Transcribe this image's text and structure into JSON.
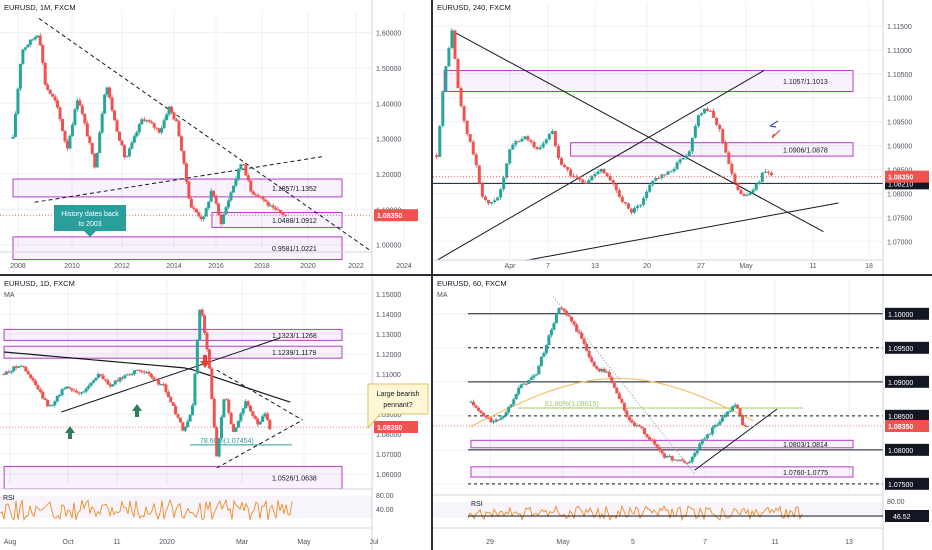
{
  "colors": {
    "bull": "#26a69a",
    "bear": "#ef5350",
    "zone_stroke": "#b43cc8",
    "zone_fill": "rgba(200,120,220,0.10)",
    "price_badge": "#ef5350",
    "rsi": "#f08a24",
    "ma": "#f5c26b",
    "teal": "#2a9d9d",
    "green": "#2e7d5b",
    "orange_arrow": "#e34234",
    "fib": "#9ccc65",
    "grid": "#eef0f4",
    "text": "#131722"
  },
  "chart_data": [
    {
      "id": "tl",
      "type": "candlestick",
      "title": "EURUSD, 1M, FXCM",
      "x_labels": [
        "2008",
        "2010",
        "2012",
        "2014",
        "2016",
        "2018",
        "2020",
        "2022",
        "2024"
      ],
      "y_ticks": [
        "1.60000",
        "1.50000",
        "1.40000",
        "1.30000",
        "1.20000",
        "1.10000",
        "1.00000"
      ],
      "ylim": [
        0.985,
        1.63
      ],
      "price": 1.0835,
      "price_label": "1.08350",
      "path": [
        [
          0,
          1.3
        ],
        [
          4,
          1.55
        ],
        [
          12,
          1.6
        ],
        [
          15,
          1.45
        ],
        [
          20,
          1.4
        ],
        [
          25,
          1.27
        ],
        [
          30,
          1.42
        ],
        [
          38,
          1.22
        ],
        [
          43,
          1.46
        ],
        [
          47,
          1.35
        ],
        [
          52,
          1.24
        ],
        [
          60,
          1.36
        ],
        [
          68,
          1.32
        ],
        [
          72,
          1.39
        ],
        [
          76,
          1.34
        ],
        [
          82,
          1.11
        ],
        [
          88,
          1.07
        ],
        [
          92,
          1.16
        ],
        [
          96,
          1.06
        ],
        [
          102,
          1.17
        ],
        [
          106,
          1.24
        ],
        [
          110,
          1.15
        ],
        [
          114,
          1.14
        ],
        [
          120,
          1.1
        ],
        [
          124,
          1.09
        ],
        [
          126,
          1.083
        ]
      ],
      "x_range": [
        -6,
        166
      ],
      "zones": [
        {
          "label": "1.1857/1.1352",
          "top": 1.1857,
          "bottom": 1.1352,
          "x_from": 0
        },
        {
          "label": "1.0488/1.0912",
          "top": 1.0912,
          "bottom": 1.0488,
          "x_from": 92
        },
        {
          "label": "0.9581/1.0221",
          "top": 1.0221,
          "bottom": 0.9581,
          "x_from": 0
        }
      ],
      "lines": [
        {
          "style": "dashed",
          "from": [
            12,
            1.64
          ],
          "to": [
            166,
            0.98
          ]
        },
        {
          "style": "dashed",
          "from": [
            10,
            1.12
          ],
          "to": [
            144,
            1.25
          ]
        }
      ],
      "callout": [
        "History dates back",
        "to 2003"
      ]
    },
    {
      "id": "tr",
      "type": "candlestick",
      "title": "EURUSD, 240, FXCM",
      "x_labels": [
        "Apr",
        "7",
        "13",
        "20",
        "27",
        "May",
        "11",
        "18"
      ],
      "y_ticks": [
        "1.11500",
        "1.11000",
        "1.10500",
        "1.10000",
        "1.09500",
        "1.09000",
        "1.08500",
        "1.08000",
        "1.07500",
        "1.07000"
      ],
      "ylim": [
        1.0665,
        1.1175
      ],
      "price": 1.0835,
      "price_label": "1.08350",
      "level_label": "1.08210",
      "level": 1.0821,
      "path": [
        [
          0,
          1.088
        ],
        [
          2,
          1.104
        ],
        [
          4,
          1.1145
        ],
        [
          6,
          1.1
        ],
        [
          8,
          1.093
        ],
        [
          10,
          1.088
        ],
        [
          12,
          1.08
        ],
        [
          14,
          1.0775
        ],
        [
          17,
          1.08
        ],
        [
          20,
          1.09
        ],
        [
          24,
          1.092
        ],
        [
          27,
          1.089
        ],
        [
          31,
          1.093
        ],
        [
          33,
          1.087
        ],
        [
          36,
          1.084
        ],
        [
          40,
          1.082
        ],
        [
          44,
          1.0855
        ],
        [
          48,
          1.081
        ],
        [
          52,
          1.076
        ],
        [
          55,
          1.0775
        ],
        [
          58,
          1.083
        ],
        [
          62,
          1.084
        ],
        [
          65,
          1.0865
        ],
        [
          68,
          1.089
        ],
        [
          70,
          1.096
        ],
        [
          72,
          1.098
        ],
        [
          74,
          1.0965
        ],
        [
          76,
          1.0935
        ],
        [
          78,
          1.088
        ],
        [
          80,
          1.082
        ],
        [
          82,
          1.08
        ],
        [
          84,
          1.0795
        ],
        [
          86,
          1.082
        ],
        [
          88,
          1.0845
        ],
        [
          90,
          1.0835
        ]
      ],
      "x_range": [
        -1,
        120
      ],
      "zones": [
        {
          "label": "1.1057/1.1013",
          "top": 1.1057,
          "bottom": 1.1013,
          "x_from": 2
        },
        {
          "label": "1.0906/1.0878",
          "top": 1.0906,
          "bottom": 1.0878,
          "x_from": 36
        }
      ],
      "lines": [
        {
          "style": "solid",
          "from": [
            4,
            1.114
          ],
          "to": [
            104,
            1.072
          ]
        },
        {
          "style": "solid",
          "from": [
            0,
            1.066
          ],
          "to": [
            88,
            1.1057
          ]
        },
        {
          "style": "solid",
          "from": [
            24,
            1.066
          ],
          "to": [
            108,
            1.078
          ]
        }
      ]
    },
    {
      "id": "bl",
      "type": "candlestick",
      "title": "EURUSD, 1D, FXCM",
      "subtitle": "MA",
      "x_labels": [
        "Aug",
        "Oct",
        "11",
        "2020",
        "Mar",
        "May",
        "Jul"
      ],
      "y_ticks": [
        "1.15000",
        "1.14000",
        "1.13000",
        "1.12000",
        "1.11000",
        "1.10000",
        "1.09000",
        "1.08000",
        "1.07000",
        "1.06000"
      ],
      "ylim": [
        1.055,
        1.152
      ],
      "price": 1.0835,
      "price_label": "1.08350",
      "path": [
        [
          0,
          1.11
        ],
        [
          8,
          1.115
        ],
        [
          15,
          1.105
        ],
        [
          22,
          1.093
        ],
        [
          30,
          1.104
        ],
        [
          38,
          1.1
        ],
        [
          46,
          1.11
        ],
        [
          52,
          1.104
        ],
        [
          60,
          1.11
        ],
        [
          68,
          1.112
        ],
        [
          72,
          1.108
        ],
        [
          78,
          1.104
        ],
        [
          82,
          1.095
        ],
        [
          88,
          1.081
        ],
        [
          92,
          1.092
        ],
        [
          96,
          1.146
        ],
        [
          100,
          1.118
        ],
        [
          104,
          1.068
        ],
        [
          108,
          1.102
        ],
        [
          112,
          1.08
        ],
        [
          118,
          1.096
        ],
        [
          124,
          1.085
        ],
        [
          128,
          1.09
        ],
        [
          130,
          1.083
        ]
      ],
      "x_range": [
        -2,
        180
      ],
      "zones": [
        {
          "label": "1.1323/1.1268",
          "top": 1.1323,
          "bottom": 1.1268,
          "x_from": 0
        },
        {
          "label": "1.1239/1.1179",
          "top": 1.1239,
          "bottom": 1.1179,
          "x_from": 0
        },
        {
          "label": "1.0526/1.0638",
          "top": 1.0638,
          "bottom": 1.0526,
          "x_from": 0
        }
      ],
      "lines": [
        {
          "style": "solid",
          "from": [
            28,
            1.091
          ],
          "to": [
            135,
            1.128
          ]
        },
        {
          "style": "dashed",
          "from": [
            104,
            1.112
          ],
          "to": [
            146,
            1.087
          ]
        },
        {
          "style": "dashed",
          "from": [
            104,
            1.063
          ],
          "to": [
            146,
            1.087
          ]
        }
      ],
      "fib_label": "78.60%(1.07454)",
      "fib_level": 1.07454,
      "callout": [
        "Large bearish",
        "pennant?"
      ],
      "rsi_label": "RSI",
      "rsi_ticks": [
        "80.00",
        "40.00"
      ]
    },
    {
      "id": "br",
      "type": "candlestick",
      "title": "EURUSD, 60, FXCM",
      "subtitle": "MA",
      "x_labels": [
        "29",
        "May",
        "5",
        "7",
        "11",
        "13"
      ],
      "y_ticks": [
        "1.10000",
        "1.09500",
        "1.09000",
        "1.08500",
        "1.08000",
        "1.07500"
      ],
      "ylim": [
        1.0738,
        1.1035
      ],
      "price": 1.0835,
      "price_label": "1.08350",
      "level_labels": [
        "1.10000",
        "1.09500",
        "1.09000",
        "1.08500",
        "1.08000",
        "1.07500"
      ],
      "path": [
        [
          0,
          1.087
        ],
        [
          4,
          1.085
        ],
        [
          8,
          1.084
        ],
        [
          12,
          1.0855
        ],
        [
          16,
          1.089
        ],
        [
          22,
          1.091
        ],
        [
          26,
          1.096
        ],
        [
          30,
          1.101
        ],
        [
          34,
          1.099
        ],
        [
          38,
          1.096
        ],
        [
          42,
          1.092
        ],
        [
          46,
          1.0915
        ],
        [
          50,
          1.088
        ],
        [
          54,
          1.084
        ],
        [
          58,
          1.083
        ],
        [
          62,
          1.081
        ],
        [
          66,
          1.079
        ],
        [
          70,
          1.0785
        ],
        [
          74,
          1.078
        ],
        [
          78,
          1.081
        ],
        [
          82,
          1.083
        ],
        [
          86,
          1.085
        ],
        [
          90,
          1.087
        ],
        [
          92,
          1.084
        ],
        [
          94,
          1.0835
        ]
      ],
      "x_range": [
        -1,
        140
      ],
      "zones": [
        {
          "label": "1.0803/1.0814",
          "top": 1.0814,
          "bottom": 1.0803,
          "x_from": 0
        },
        {
          "label": "1.0760-1.0775",
          "top": 1.0775,
          "bottom": 1.076,
          "x_from": 0
        }
      ],
      "lines": [
        {
          "style": "dotted",
          "from": [
            28,
            1.1025
          ],
          "to": [
            76,
            1.0765
          ]
        },
        {
          "style": "solid",
          "from": [
            76,
            1.077
          ],
          "to": [
            104,
            1.086
          ]
        }
      ],
      "fib_label": "61.80%(1.08615)",
      "fib_level": 1.08615,
      "rsi_label": "RSI",
      "rsi_value": "46.52",
      "rsi_ticks": [
        "80.00"
      ]
    }
  ]
}
